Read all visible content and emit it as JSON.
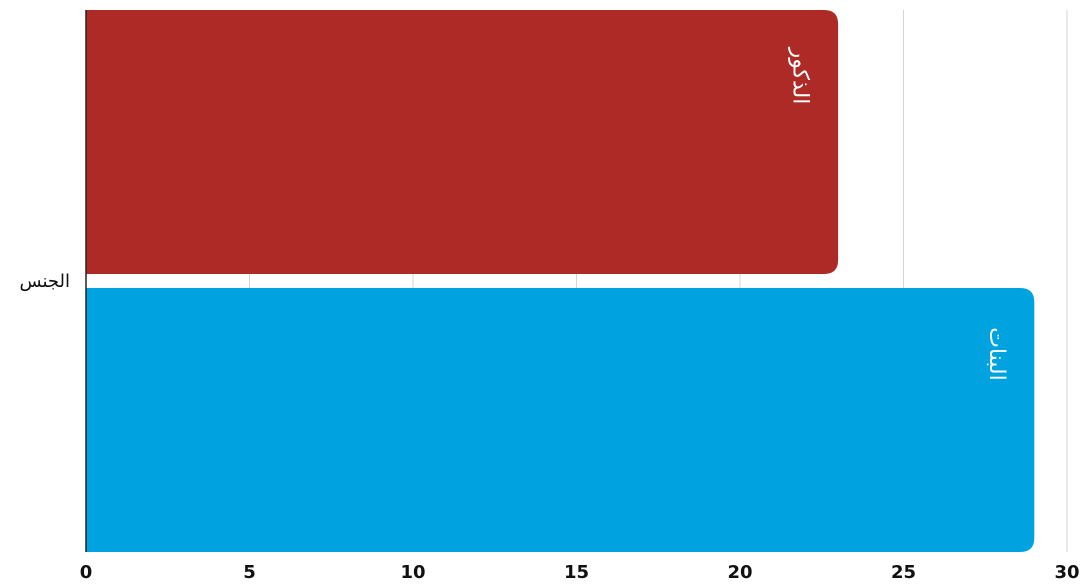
{
  "chart_data": {
    "type": "bar",
    "orientation": "horizontal",
    "category_axis_label": "الجنس",
    "series": [
      {
        "name": "الذكور",
        "value": 23,
        "color": "#ae2a27"
      },
      {
        "name": "البنات",
        "value": 29,
        "color": "#00a3e0"
      }
    ],
    "xlim": [
      0,
      30
    ],
    "xticks": [
      0,
      5,
      10,
      15,
      20,
      25,
      30
    ],
    "grid": true,
    "legend": "none"
  }
}
